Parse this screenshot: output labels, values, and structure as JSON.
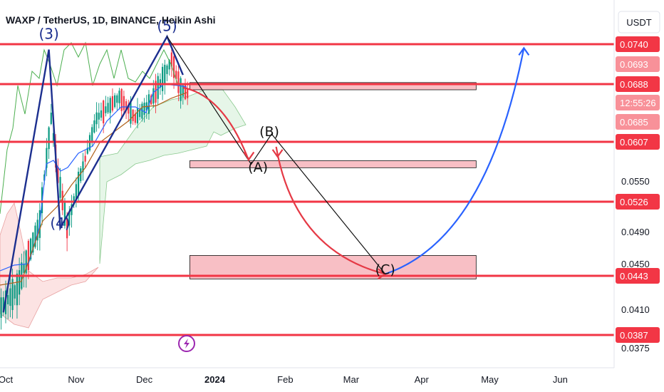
{
  "header": {
    "title": "WAXP / TetherUS, 1D, BINANCE, Heikin Ashi",
    "currency": "USDT"
  },
  "chart_data": {
    "type": "candlestick",
    "title": "WAXP / TetherUS, 1D, BINANCE, Heikin Ashi",
    "x_ticks": [
      "Oct",
      "Nov",
      "Dec",
      "2024",
      "Feb",
      "Mar",
      "Apr",
      "May",
      "Jun"
    ],
    "y_ticks": [
      "0.0550",
      "0.0490",
      "0.0410",
      "0.0375"
    ],
    "partially_hidden_ticks": [
      "0.0450"
    ],
    "price_badges": [
      {
        "value": "0.0740",
        "color": "#f23645",
        "muted": false
      },
      {
        "value": "0.0693",
        "color": "#f23645",
        "muted": true
      },
      {
        "value": "0.0688",
        "color": "#f23645",
        "muted": false
      },
      {
        "value": "12:55:26",
        "color": "#f23645",
        "muted": true
      },
      {
        "value": "0.0685",
        "color": "#f23645",
        "muted": true
      },
      {
        "value": "0.0607",
        "color": "#f23645",
        "muted": false
      },
      {
        "value": "0.0526",
        "color": "#f23645",
        "muted": false
      },
      {
        "value": "0.0443",
        "color": "#f23645",
        "muted": false
      },
      {
        "value": "0.0387",
        "color": "#f23645",
        "muted": false
      }
    ],
    "horizontal_levels": [
      0.074,
      0.0688,
      0.0607,
      0.0526,
      0.0443,
      0.0387
    ],
    "zones": [
      {
        "from": 0.068,
        "to": 0.069,
        "x_from": "2023-12-21",
        "x_to": "2024-04-25"
      },
      {
        "from": 0.057,
        "to": 0.058,
        "x_from": "2023-12-21",
        "x_to": "2024-04-25"
      },
      {
        "from": 0.044,
        "to": 0.0465,
        "x_from": "2023-12-21",
        "x_to": "2024-04-25"
      }
    ],
    "wave_labels": [
      {
        "label": "(3)",
        "x": "2023-10-20",
        "y": 0.0747
      },
      {
        "label": "(4)",
        "x": "2023-10-25",
        "y": 0.0495
      },
      {
        "label": "(5)",
        "x": "2023-12-11",
        "y": 0.0757
      },
      {
        "label": "(A)",
        "x": "2024-01-20",
        "y": 0.0564
      },
      {
        "label": "(B)",
        "x": "2024-01-25",
        "y": 0.0615
      },
      {
        "label": "(C)",
        "x": "2024-03-16",
        "y": 0.0445
      }
    ],
    "colors": {
      "level": "#f23645",
      "zone_fill": "#f7b4bb",
      "wave_line": "#1c2f8f",
      "projection_red": "#e53945",
      "projection_blue": "#2962ff",
      "candle_up": "#089981",
      "candle_down": "#f23645",
      "cloud_green": "#d6f0d9",
      "cloud_red": "#fbd7d7"
    }
  }
}
